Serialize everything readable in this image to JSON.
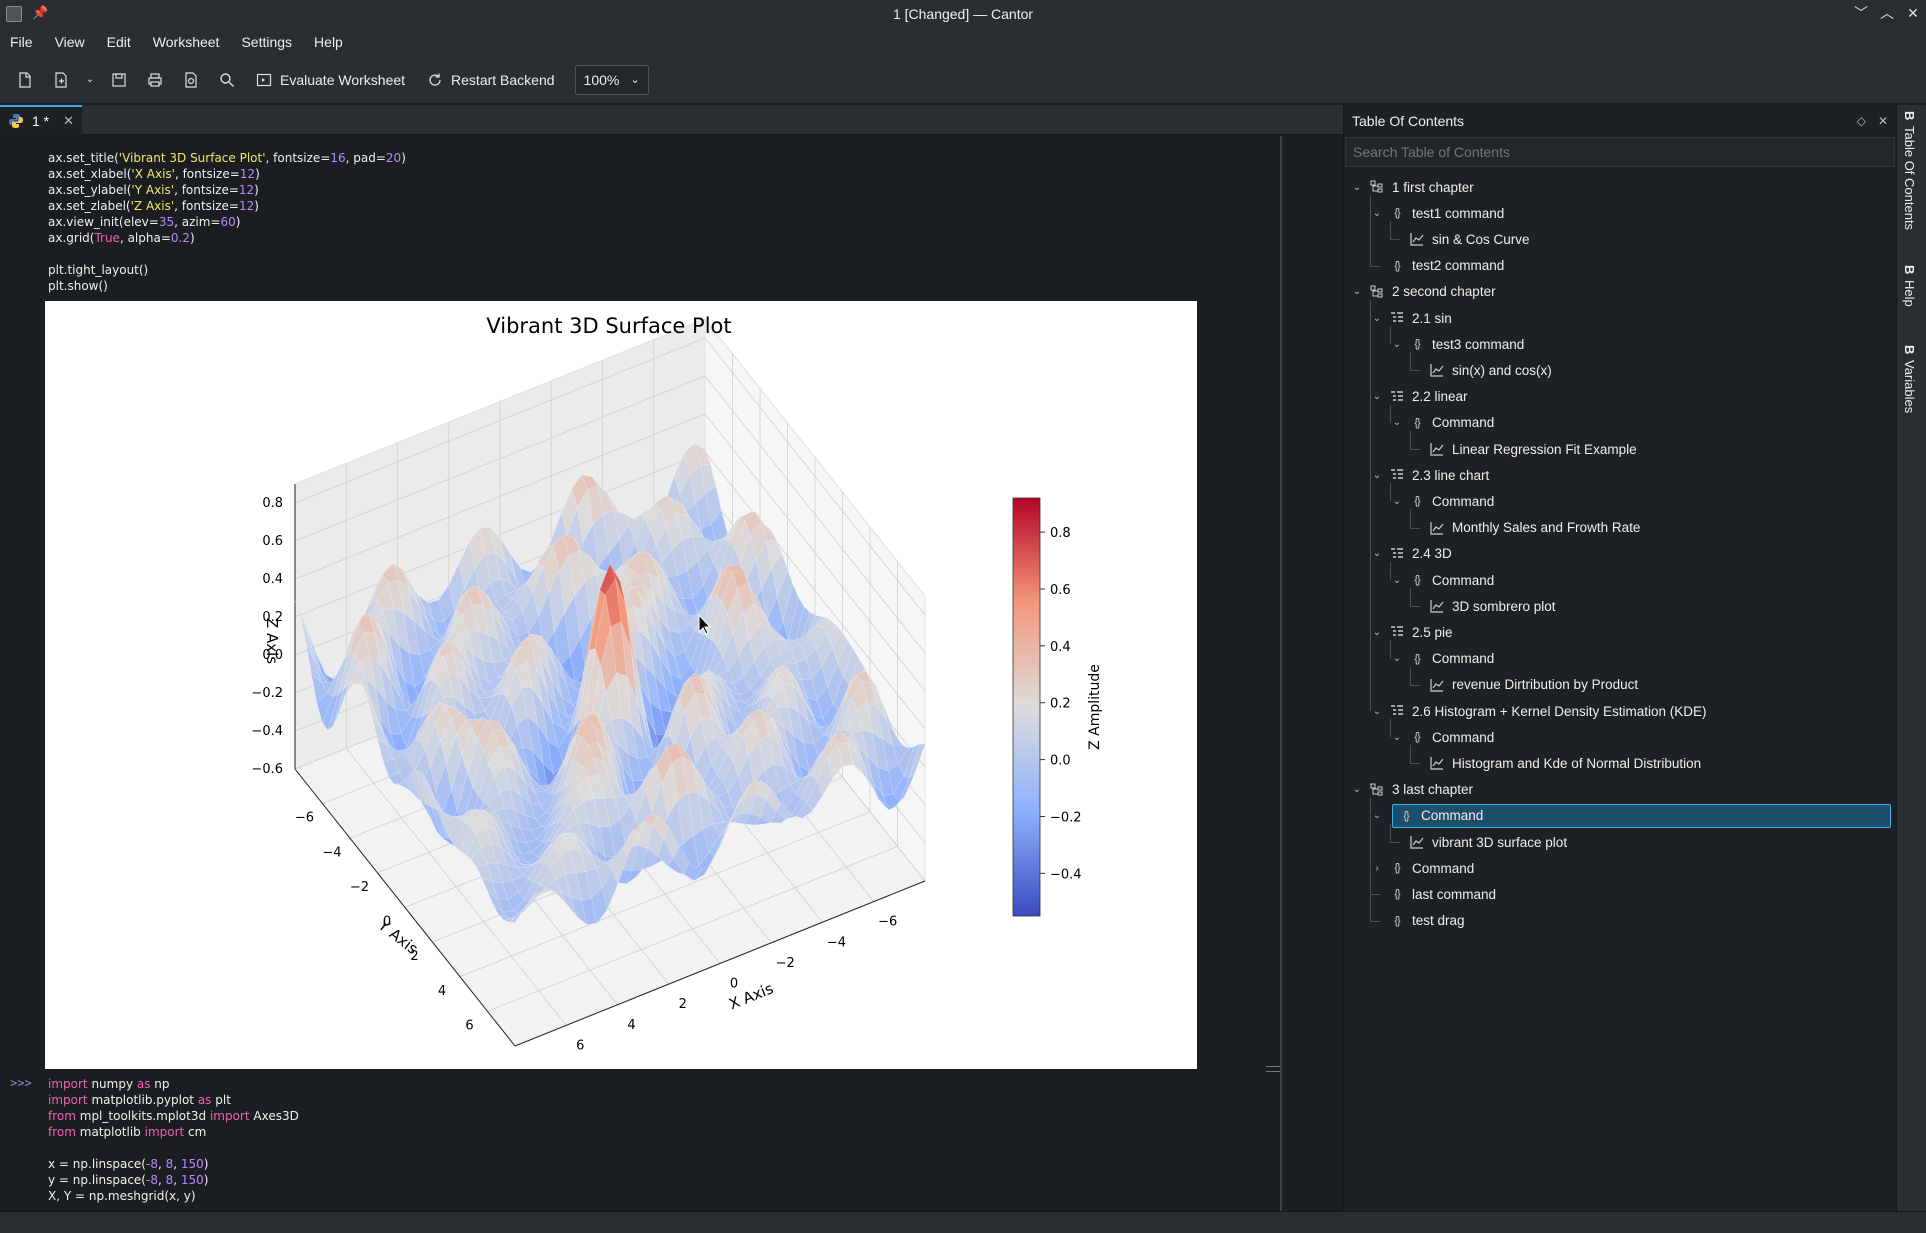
{
  "window": {
    "title": "1 [Changed] — Cantor"
  },
  "menu": [
    "File",
    "View",
    "Edit",
    "Worksheet",
    "Settings",
    "Help"
  ],
  "toolbar": {
    "evaluate_label": "Evaluate Worksheet",
    "restart_label": "Restart Backend",
    "zoom": "100%"
  },
  "tab": {
    "label": "1 *"
  },
  "code_top": [
    [
      [
        "ax.set_title(",
        ""
      ],
      [
        "'Vibrant 3D Surface Plot'",
        "str"
      ],
      [
        ", fontsize=",
        ""
      ],
      [
        "16",
        "num"
      ],
      [
        ", pad=",
        ""
      ],
      [
        "20",
        "num"
      ],
      [
        ")",
        ""
      ]
    ],
    [
      [
        "ax.set_xlabel(",
        ""
      ],
      [
        "'X Axis'",
        "str"
      ],
      [
        ", fontsize=",
        ""
      ],
      [
        "12",
        "num"
      ],
      [
        ")",
        ""
      ]
    ],
    [
      [
        "ax.set_ylabel(",
        ""
      ],
      [
        "'Y Axis'",
        "str"
      ],
      [
        ", fontsize=",
        ""
      ],
      [
        "12",
        "num"
      ],
      [
        ")",
        ""
      ]
    ],
    [
      [
        "ax.set_zlabel(",
        ""
      ],
      [
        "'Z Axis'",
        "str"
      ],
      [
        ", fontsize=",
        ""
      ],
      [
        "12",
        "num"
      ],
      [
        ")",
        ""
      ]
    ],
    [
      [
        "ax.view_init(elev=",
        ""
      ],
      [
        "35",
        "num"
      ],
      [
        ", azim=",
        ""
      ],
      [
        "60",
        "num"
      ],
      [
        ")",
        ""
      ]
    ],
    [
      [
        "ax.grid(",
        ""
      ],
      [
        "True",
        "kw"
      ],
      [
        ", alpha=",
        ""
      ],
      [
        "0.2",
        "num"
      ],
      [
        ")",
        ""
      ]
    ],
    [
      [
        "",
        ""
      ]
    ],
    [
      [
        "plt.tight_layout()",
        ""
      ]
    ],
    [
      [
        "plt.show()",
        ""
      ]
    ]
  ],
  "prompt": ">>>",
  "code_bottom": [
    [
      [
        "import",
        "kw"
      ],
      [
        " numpy ",
        ""
      ],
      [
        "as",
        "kw"
      ],
      [
        " np",
        ""
      ]
    ],
    [
      [
        "import",
        "kw"
      ],
      [
        " matplotlib.pyplot ",
        ""
      ],
      [
        "as",
        "kw"
      ],
      [
        " plt",
        ""
      ]
    ],
    [
      [
        "from",
        "kw"
      ],
      [
        " mpl_toolkits.mplot3d ",
        ""
      ],
      [
        "import",
        "kw"
      ],
      [
        " Axes3D",
        ""
      ]
    ],
    [
      [
        "from",
        "kw"
      ],
      [
        " matplotlib ",
        ""
      ],
      [
        "import",
        "kw"
      ],
      [
        " cm",
        ""
      ]
    ],
    [
      [
        "",
        ""
      ]
    ],
    [
      [
        "x = np.linspace(",
        ""
      ],
      [
        "-8",
        "num"
      ],
      [
        ", ",
        ""
      ],
      [
        "8",
        "num"
      ],
      [
        ", ",
        ""
      ],
      [
        "150",
        "num"
      ],
      [
        ")",
        ""
      ]
    ],
    [
      [
        "y = np.linspace(",
        ""
      ],
      [
        "-8",
        "num"
      ],
      [
        ", ",
        ""
      ],
      [
        "8",
        "num"
      ],
      [
        ", ",
        ""
      ],
      [
        "150",
        "num"
      ],
      [
        ")",
        ""
      ]
    ],
    [
      [
        "X, Y = np.meshgrid(x, y)",
        ""
      ]
    ]
  ],
  "chart_data": {
    "type": "surface",
    "title": "Vibrant 3D Surface Plot",
    "xlabel": "X Axis",
    "ylabel": "Y Axis",
    "zlabel": "Z Axis",
    "colorbar_label": "Z Amplitude",
    "colormap": "coolwarm",
    "x_ticks": [
      "−6",
      "−4",
      "−2",
      "0",
      "2",
      "4",
      "6"
    ],
    "y_ticks": [
      "−6",
      "−4",
      "−2",
      "0",
      "2",
      "4",
      "6"
    ],
    "z_ticks": [
      "−0.6",
      "−0.4",
      "−0.2",
      "0.0",
      "0.2",
      "0.4",
      "0.6",
      "0.8"
    ],
    "colorbar_ticks": [
      "0.8",
      "0.6",
      "0.4",
      "0.2",
      "0.0",
      "−0.2",
      "−0.4"
    ],
    "zlim": [
      -0.6,
      0.9
    ],
    "colorbar_range": [
      -0.55,
      0.92
    ],
    "grid": true,
    "view": {
      "elev": 35,
      "azim": 60
    }
  },
  "toc": {
    "title": "Table Of Contents",
    "search_placeholder": "Search Table of Contents",
    "items": [
      {
        "label": "1 first chapter",
        "level": 0,
        "icon": "chapter",
        "expanded": true
      },
      {
        "label": "test1 command",
        "level": 1,
        "icon": "command",
        "expanded": true
      },
      {
        "label": "sin & Cos Curve",
        "level": 2,
        "icon": "chart"
      },
      {
        "label": "test2 command",
        "level": 1,
        "icon": "command"
      },
      {
        "label": "2 second chapter",
        "level": 0,
        "icon": "chapter",
        "expanded": true
      },
      {
        "label": "2.1 sin",
        "level": 1,
        "icon": "section",
        "expanded": true
      },
      {
        "label": "test3 command",
        "level": 2,
        "icon": "command",
        "expanded": true
      },
      {
        "label": "sin(x) and cos(x)",
        "level": 3,
        "icon": "chart"
      },
      {
        "label": "2.2 linear",
        "level": 1,
        "icon": "section",
        "expanded": true
      },
      {
        "label": "Command",
        "level": 2,
        "icon": "command",
        "expanded": true
      },
      {
        "label": "Linear Regression Fit Example",
        "level": 3,
        "icon": "chart"
      },
      {
        "label": "2.3 line chart",
        "level": 1,
        "icon": "section",
        "expanded": true
      },
      {
        "label": "Command",
        "level": 2,
        "icon": "command",
        "expanded": true
      },
      {
        "label": "Monthly Sales and Frowth Rate",
        "level": 3,
        "icon": "chart"
      },
      {
        "label": "2.4 3D",
        "level": 1,
        "icon": "section",
        "expanded": true
      },
      {
        "label": "Command",
        "level": 2,
        "icon": "command",
        "expanded": true
      },
      {
        "label": "3D sombrero plot",
        "level": 3,
        "icon": "chart"
      },
      {
        "label": "2.5 pie",
        "level": 1,
        "icon": "section",
        "expanded": true
      },
      {
        "label": "Command",
        "level": 2,
        "icon": "command",
        "expanded": true
      },
      {
        "label": "revenue Dirtribution by Product",
        "level": 3,
        "icon": "chart"
      },
      {
        "label": "2.6 Histogram + Kernel Density Estimation (KDE)",
        "level": 1,
        "icon": "section",
        "expanded": true
      },
      {
        "label": "Command",
        "level": 2,
        "icon": "command",
        "expanded": true
      },
      {
        "label": "Histogram and Kde of Normal Distribution",
        "level": 3,
        "icon": "chart"
      },
      {
        "label": "3 last chapter",
        "level": 0,
        "icon": "chapter",
        "expanded": true
      },
      {
        "label": "Command",
        "level": 1,
        "icon": "command",
        "expanded": true,
        "selected": true
      },
      {
        "label": "vibrant 3D surface  plot",
        "level": 2,
        "icon": "chart"
      },
      {
        "label": "Command",
        "level": 1,
        "icon": "command",
        "expanded": false
      },
      {
        "label": "last command",
        "level": 1,
        "icon": "command"
      },
      {
        "label": "test drag",
        "level": 1,
        "icon": "command"
      }
    ]
  },
  "side_tabs": [
    "Table Of Contents",
    "Help",
    "Variables"
  ]
}
